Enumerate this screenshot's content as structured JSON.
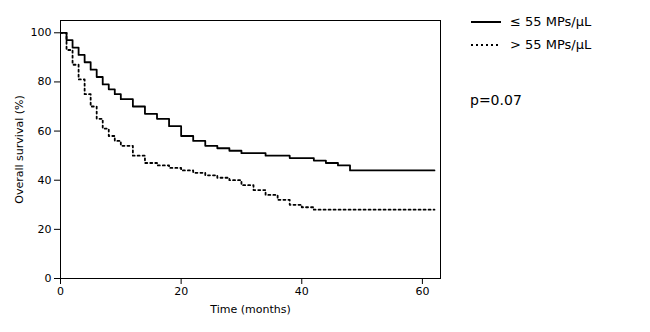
{
  "chart_data": {
    "type": "step",
    "xlabel": "Time (months)",
    "ylabel": "Overall survival (%)",
    "xlim": [
      0,
      63
    ],
    "ylim": [
      0,
      105
    ],
    "xticks": [
      0,
      20,
      40,
      60
    ],
    "yticks": [
      0,
      20,
      40,
      60,
      80,
      100
    ],
    "legend": "upper right",
    "annotation": "p=0.07",
    "series": [
      {
        "name": "≤ 55 MPs/μL",
        "color": "#000000",
        "line_style": "solid",
        "x": [
          0,
          1,
          2,
          3,
          4,
          5,
          6,
          7,
          8,
          9,
          10,
          12,
          14,
          16,
          18,
          20,
          22,
          24,
          26,
          28,
          30,
          32,
          34,
          36,
          38,
          40,
          42,
          44,
          46,
          48,
          62
        ],
        "values": [
          100,
          97,
          94,
          91,
          88,
          85,
          82,
          79,
          77,
          75,
          73,
          70,
          67,
          65,
          62,
          58,
          56,
          54,
          53,
          52,
          51,
          51,
          50,
          50,
          49,
          49,
          48,
          47,
          46,
          44,
          44
        ]
      },
      {
        "name": "> 55 MPs/μL",
        "color": "#000000",
        "line_style": "dotted",
        "x": [
          0,
          1,
          2,
          3,
          4,
          5,
          6,
          7,
          8,
          9,
          10,
          12,
          14,
          16,
          18,
          20,
          22,
          24,
          26,
          28,
          30,
          32,
          34,
          36,
          38,
          40,
          42,
          44,
          50,
          62
        ],
        "values": [
          100,
          93,
          87,
          81,
          75,
          70,
          65,
          61,
          58,
          56,
          54,
          50,
          47,
          46,
          45,
          44,
          43,
          42,
          41,
          40,
          38,
          36,
          34,
          32,
          30,
          29,
          28,
          28,
          28,
          28
        ]
      }
    ]
  }
}
